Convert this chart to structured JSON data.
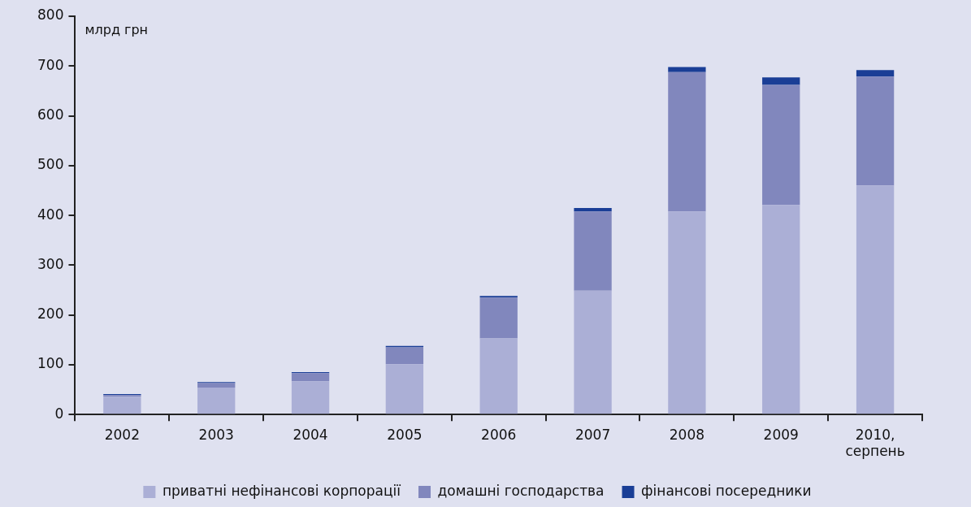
{
  "chart_data": {
    "type": "bar",
    "stacked": true,
    "ylabel": "млрд грн",
    "categories": [
      "2002",
      "2003",
      "2004",
      "2005",
      "2006",
      "2007",
      "2008",
      "2009",
      "2010,\nсерпень"
    ],
    "series": [
      {
        "name": "приватні нефінансові корпорації",
        "color": "#abafd6",
        "values": [
          36,
          54,
          67,
          101,
          153,
          249,
          408,
          421,
          460
        ]
      },
      {
        "name": "домашні господарства",
        "color": "#8187bd",
        "values": [
          3,
          9,
          16,
          34,
          82,
          159,
          280,
          241,
          219
        ]
      },
      {
        "name": "фінансові посередники",
        "color": "#1a3e96",
        "values": [
          2,
          2,
          2,
          3,
          3,
          7,
          10,
          15,
          13
        ]
      }
    ],
    "ylim": [
      0,
      800
    ],
    "yticks": [
      0,
      100,
      200,
      300,
      400,
      500,
      600,
      700,
      800
    ],
    "grid": false,
    "legend": "bottom"
  }
}
